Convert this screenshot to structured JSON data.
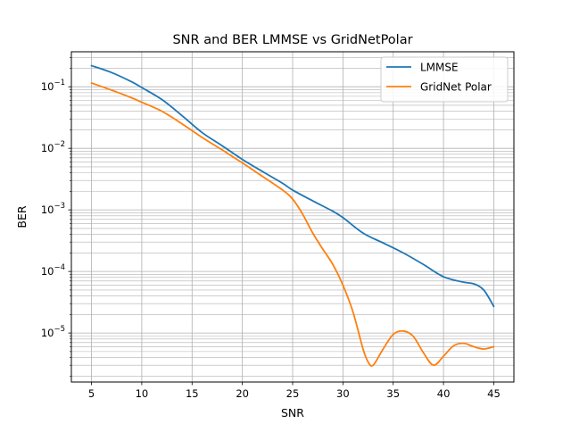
{
  "chart_data": {
    "type": "line",
    "title": "SNR and BER LMMSE vs GridNetPolar",
    "xlabel": "SNR",
    "ylabel": "BER",
    "xlim": [
      3.0,
      47.0
    ],
    "ylim": [
      1.6e-06,
      0.37
    ],
    "yscale": "log",
    "grid": true,
    "legend_position": "top-right",
    "x_ticks": [
      5,
      10,
      15,
      20,
      25,
      30,
      35,
      40,
      45
    ],
    "y_ticks": [
      {
        "exp": -1,
        "value": 0.1
      },
      {
        "exp": -2,
        "value": 0.01
      },
      {
        "exp": -3,
        "value": 0.001
      },
      {
        "exp": -4,
        "value": 0.0001
      },
      {
        "exp": -5,
        "value": 1e-05
      }
    ],
    "series": [
      {
        "name": "LMMSE",
        "color": "#1f77b4",
        "points": [
          [
            5,
            0.22
          ],
          [
            7,
            0.17
          ],
          [
            9,
            0.12
          ],
          [
            10,
            0.097
          ],
          [
            12,
            0.062
          ],
          [
            14,
            0.034
          ],
          [
            16,
            0.018
          ],
          [
            18,
            0.011
          ],
          [
            20,
            0.0066
          ],
          [
            22,
            0.0042
          ],
          [
            24,
            0.0027
          ],
          [
            25,
            0.0021
          ],
          [
            27,
            0.0014
          ],
          [
            29,
            0.00095
          ],
          [
            30,
            0.00075
          ],
          [
            32,
            0.00042
          ],
          [
            34,
            0.00029
          ],
          [
            36,
            0.0002
          ],
          [
            38,
            0.00013
          ],
          [
            40,
            8.2e-05
          ],
          [
            42,
            6.7e-05
          ],
          [
            43,
            6.3e-05
          ],
          [
            44,
            5e-05
          ],
          [
            45,
            2.7e-05
          ]
        ]
      },
      {
        "name": "GridNet Polar",
        "color": "#ff7f0e",
        "points": [
          [
            5,
            0.115
          ],
          [
            7,
            0.088
          ],
          [
            9,
            0.066
          ],
          [
            10,
            0.056
          ],
          [
            12,
            0.04
          ],
          [
            14,
            0.025
          ],
          [
            16,
            0.015
          ],
          [
            18,
            0.0094
          ],
          [
            20,
            0.0058
          ],
          [
            22,
            0.0035
          ],
          [
            24,
            0.0021
          ],
          [
            25,
            0.0015
          ],
          [
            26,
            0.00085
          ],
          [
            27,
            0.00042
          ],
          [
            28,
            0.00023
          ],
          [
            29,
            0.00013
          ],
          [
            30,
            6e-05
          ],
          [
            31,
            2.2e-05
          ],
          [
            32,
            5.5e-06
          ],
          [
            32.5,
            3.4e-06
          ],
          [
            33,
            3e-06
          ],
          [
            34,
            5.5e-06
          ],
          [
            35,
            9.5e-06
          ],
          [
            36,
            1.08e-05
          ],
          [
            37,
            8.8e-06
          ],
          [
            38,
            4.8e-06
          ],
          [
            39,
            3e-06
          ],
          [
            40,
            4.2e-06
          ],
          [
            41,
            6.2e-06
          ],
          [
            42,
            6.8e-06
          ],
          [
            43,
            6e-06
          ],
          [
            44,
            5.5e-06
          ],
          [
            45,
            6e-06
          ]
        ]
      }
    ]
  }
}
